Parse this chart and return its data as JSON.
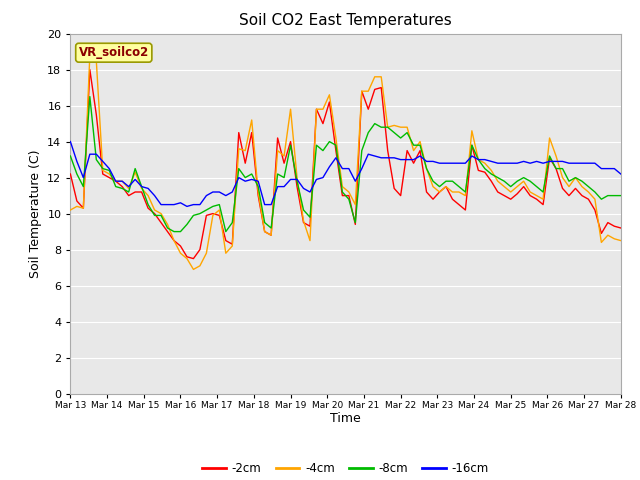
{
  "title": "Soil CO2 East Temperatures",
  "xlabel": "Time",
  "ylabel": "Soil Temperature (C)",
  "annotation": "VR_soilco2",
  "ylim": [
    0,
    20
  ],
  "colors": {
    "-2cm": "#FF0000",
    "-4cm": "#FFA500",
    "-8cm": "#00BB00",
    "-16cm": "#0000FF"
  },
  "legend_labels": [
    "-2cm",
    "-4cm",
    "-8cm",
    "-16cm"
  ],
  "x_tick_labels": [
    "Mar 13",
    "Mar 14",
    "Mar 15",
    "Mar 16",
    "Mar 17",
    "Mar 18",
    "Mar 19",
    "Mar 20",
    "Mar 21",
    "Mar 22",
    "Mar 23",
    "Mar 24",
    "Mar 25",
    "Mar 26",
    "Mar 27",
    "Mar 28"
  ],
  "plot_bg_color": "#E8E8E8",
  "fig_bg_color": "#FFFFFF",
  "grid_color": "#FFFFFF",
  "data_2cm": [
    12.2,
    10.7,
    10.3,
    18.0,
    15.5,
    12.2,
    12.0,
    11.8,
    11.5,
    11.0,
    11.2,
    11.2,
    10.3,
    10.0,
    9.5,
    9.0,
    8.5,
    8.2,
    7.6,
    7.5,
    8.0,
    9.9,
    10.0,
    9.9,
    8.5,
    8.3,
    14.5,
    12.8,
    14.5,
    11.0,
    9.0,
    8.8,
    14.2,
    12.8,
    14.0,
    11.5,
    9.5,
    9.3,
    15.8,
    15.0,
    16.2,
    13.5,
    11.0,
    11.0,
    9.4,
    16.8,
    15.8,
    16.9,
    17.0,
    13.5,
    11.4,
    11.0,
    13.5,
    12.8,
    13.5,
    11.2,
    10.8,
    11.2,
    11.5,
    10.8,
    10.5,
    10.2,
    13.8,
    12.4,
    12.3,
    11.8,
    11.2,
    11.0,
    10.8,
    11.1,
    11.5,
    11.0,
    10.8,
    10.5,
    13.1,
    12.5,
    11.4,
    11.0,
    11.4,
    11.0,
    10.8,
    10.2,
    8.9,
    9.5,
    9.3,
    9.2
  ],
  "data_4cm": [
    10.2,
    10.4,
    10.3,
    18.8,
    18.5,
    12.4,
    12.2,
    11.8,
    11.8,
    11.4,
    12.3,
    11.4,
    11.0,
    10.2,
    10.0,
    9.4,
    8.5,
    7.8,
    7.5,
    6.9,
    7.1,
    7.8,
    9.9,
    10.2,
    7.8,
    8.2,
    13.6,
    13.5,
    15.2,
    11.2,
    9.0,
    8.8,
    13.5,
    13.2,
    15.8,
    12.0,
    9.6,
    8.5,
    15.8,
    15.8,
    16.6,
    14.2,
    11.5,
    11.2,
    10.5,
    16.8,
    16.8,
    17.6,
    17.6,
    14.8,
    14.9,
    14.8,
    14.8,
    13.5,
    14.0,
    12.5,
    11.5,
    11.2,
    11.5,
    11.2,
    11.2,
    11.0,
    14.6,
    13.0,
    12.8,
    12.4,
    11.8,
    11.5,
    11.2,
    11.5,
    11.8,
    11.2,
    11.0,
    10.8,
    14.2,
    13.2,
    12.0,
    11.5,
    12.0,
    11.5,
    11.2,
    10.8,
    8.4,
    8.8,
    8.6,
    8.5
  ],
  "data_8cm": [
    13.2,
    12.2,
    11.5,
    16.5,
    13.0,
    12.5,
    12.4,
    11.5,
    11.4,
    11.2,
    12.5,
    11.5,
    10.5,
    9.9,
    9.9,
    9.2,
    9.0,
    9.0,
    9.4,
    9.9,
    10.0,
    10.2,
    10.4,
    10.5,
    9.0,
    9.5,
    12.5,
    12.0,
    12.2,
    11.5,
    9.5,
    9.2,
    12.2,
    12.0,
    13.8,
    11.8,
    10.2,
    9.8,
    13.8,
    13.5,
    14.0,
    13.8,
    11.2,
    10.8,
    9.5,
    13.5,
    14.5,
    15.0,
    14.8,
    14.8,
    14.5,
    14.2,
    14.5,
    13.8,
    13.8,
    12.5,
    11.8,
    11.5,
    11.8,
    11.8,
    11.5,
    11.2,
    13.8,
    13.0,
    12.5,
    12.2,
    12.0,
    11.8,
    11.5,
    11.8,
    12.0,
    11.8,
    11.5,
    11.2,
    13.2,
    12.5,
    12.5,
    11.8,
    12.0,
    11.8,
    11.5,
    11.2,
    10.8,
    11.0,
    11.0,
    11.0
  ],
  "data_16cm": [
    14.0,
    12.9,
    12.0,
    13.3,
    13.3,
    12.9,
    12.5,
    11.8,
    11.8,
    11.5,
    11.9,
    11.5,
    11.4,
    11.0,
    10.5,
    10.5,
    10.5,
    10.6,
    10.4,
    10.5,
    10.5,
    11.0,
    11.2,
    11.2,
    11.0,
    11.2,
    12.0,
    11.8,
    11.9,
    11.8,
    10.5,
    10.5,
    11.5,
    11.5,
    11.9,
    11.9,
    11.4,
    11.2,
    11.9,
    12.0,
    12.6,
    13.1,
    12.5,
    12.5,
    11.8,
    12.5,
    13.3,
    13.2,
    13.1,
    13.1,
    13.1,
    13.0,
    13.0,
    13.0,
    13.2,
    12.9,
    12.9,
    12.8,
    12.8,
    12.8,
    12.8,
    12.8,
    13.2,
    13.0,
    13.0,
    12.9,
    12.8,
    12.8,
    12.8,
    12.8,
    12.9,
    12.8,
    12.9,
    12.8,
    12.9,
    12.9,
    12.9,
    12.8,
    12.8,
    12.8,
    12.8,
    12.8,
    12.5,
    12.5,
    12.5,
    12.2
  ]
}
